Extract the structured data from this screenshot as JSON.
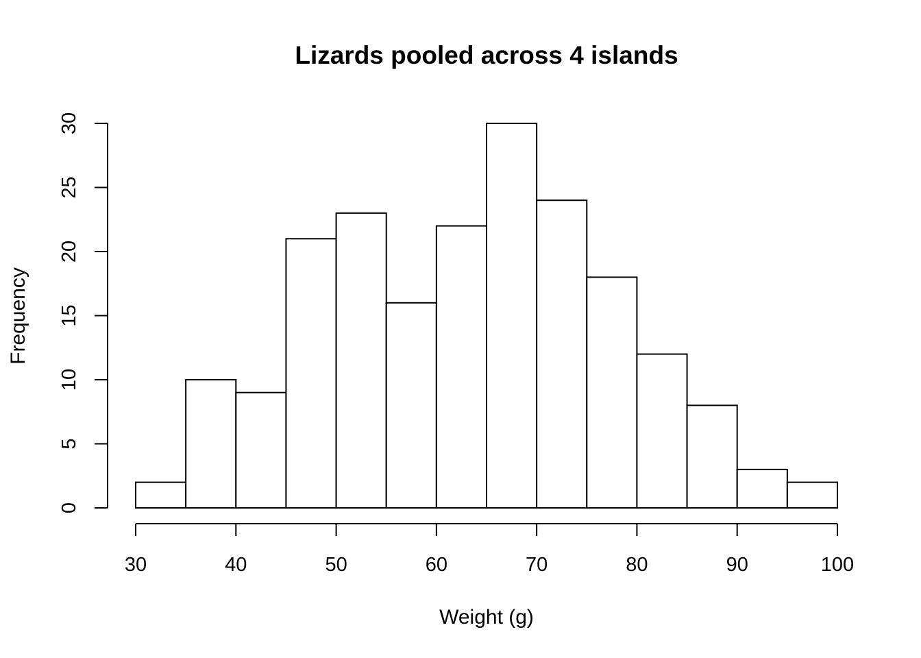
{
  "chart_data": {
    "type": "bar",
    "title": "Lizards pooled across 4 islands",
    "xlabel": "Weight (g)",
    "ylabel": "Frequency",
    "bins": [
      {
        "start": 30,
        "end": 35,
        "count": 2
      },
      {
        "start": 35,
        "end": 40,
        "count": 10
      },
      {
        "start": 40,
        "end": 45,
        "count": 9
      },
      {
        "start": 45,
        "end": 50,
        "count": 21
      },
      {
        "start": 50,
        "end": 55,
        "count": 23
      },
      {
        "start": 55,
        "end": 60,
        "count": 16
      },
      {
        "start": 60,
        "end": 65,
        "count": 22
      },
      {
        "start": 65,
        "end": 70,
        "count": 30
      },
      {
        "start": 70,
        "end": 75,
        "count": 24
      },
      {
        "start": 75,
        "end": 80,
        "count": 18
      },
      {
        "start": 80,
        "end": 85,
        "count": 12
      },
      {
        "start": 85,
        "end": 90,
        "count": 8
      },
      {
        "start": 90,
        "end": 95,
        "count": 3
      },
      {
        "start": 95,
        "end": 100,
        "count": 2
      }
    ],
    "xlim": [
      30,
      100
    ],
    "ylim": [
      0,
      30
    ],
    "x_ticks": [
      "30",
      "40",
      "50",
      "60",
      "70",
      "80",
      "90",
      "100"
    ],
    "y_ticks": [
      "0",
      "5",
      "10",
      "15",
      "20",
      "25",
      "30"
    ],
    "grid": false,
    "colors": {
      "bar_fill": "#ffffff",
      "bar_stroke": "#000000"
    }
  }
}
